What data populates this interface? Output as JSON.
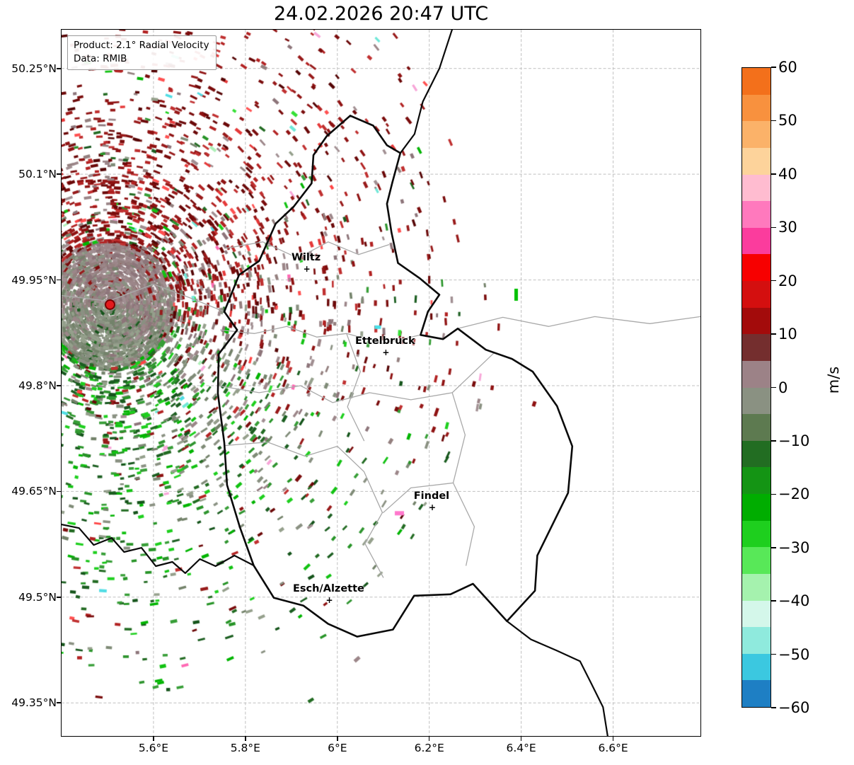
{
  "title": "24.02.2026 20:47 UTC",
  "info_box": {
    "product_line": "Product: 2.1° Radial Velocity",
    "data_line": "Data: RMIB"
  },
  "axes": {
    "lat_tick_labels": [
      "50.25°N",
      "50.1°N",
      "49.95°N",
      "49.8°N",
      "49.65°N",
      "49.5°N",
      "49.35°N"
    ],
    "lat_tick_values": [
      50.25,
      50.1,
      49.95,
      49.8,
      49.65,
      49.5,
      49.35
    ],
    "lon_tick_labels": [
      "5.6°E",
      "5.8°E",
      "6°E",
      "6.2°E",
      "6.4°E",
      "6.6°E"
    ],
    "lon_tick_values": [
      5.6,
      5.8,
      6.0,
      6.2,
      6.4,
      6.6
    ],
    "lon_range": [
      5.4,
      6.79
    ],
    "lat_range": [
      49.303,
      50.305
    ],
    "grid": "dashed"
  },
  "colorbar": {
    "unit_label": "m/s",
    "tick_labels": [
      "60",
      "50",
      "40",
      "30",
      "20",
      "10",
      "0",
      "−10",
      "−20",
      "−30",
      "−40",
      "−50",
      "−60"
    ],
    "tick_values": [
      60,
      50,
      40,
      30,
      20,
      10,
      0,
      -10,
      -20,
      -30,
      -40,
      -50,
      -60
    ],
    "vmin": -60,
    "vmax": 60,
    "band_colors_top_to_bottom": [
      "#f3701b",
      "#f8913e",
      "#fbb269",
      "#fdd39b",
      "#ffbcd0",
      "#ff79bd",
      "#fb3c9d",
      "#f70000",
      "#d40f0f",
      "#a30b0b",
      "#742e2e",
      "#9c8287",
      "#8a9182",
      "#5d7a50",
      "#226d22",
      "#149414",
      "#00ad00",
      "#1ecf1e",
      "#58e858",
      "#a5f2ae",
      "#d4f7ea",
      "#8feadd",
      "#3bc8e0",
      "#1e7fc4"
    ]
  },
  "map": {
    "national_borders": [
      {
        "name": "luxembourg-outline",
        "width": 2.6,
        "points": [
          [
            6.028,
            50.183
          ],
          [
            6.078,
            50.169
          ],
          [
            6.108,
            50.141
          ],
          [
            6.137,
            50.13
          ],
          [
            6.12,
            50.089
          ],
          [
            6.108,
            50.058
          ],
          [
            6.118,
            50.017
          ],
          [
            6.132,
            49.974
          ],
          [
            6.18,
            49.952
          ],
          [
            6.222,
            49.929
          ],
          [
            6.197,
            49.905
          ],
          [
            6.181,
            49.872
          ],
          [
            6.23,
            49.866
          ],
          [
            6.262,
            49.881
          ],
          [
            6.323,
            49.851
          ],
          [
            6.38,
            49.838
          ],
          [
            6.425,
            49.82
          ],
          [
            6.478,
            49.771
          ],
          [
            6.511,
            49.714
          ],
          [
            6.502,
            49.648
          ],
          [
            6.435,
            49.559
          ],
          [
            6.43,
            49.509
          ],
          [
            6.369,
            49.466
          ],
          [
            6.295,
            49.519
          ],
          [
            6.246,
            49.504
          ],
          [
            6.167,
            49.502
          ],
          [
            6.121,
            49.454
          ],
          [
            6.043,
            49.444
          ],
          [
            5.98,
            49.462
          ],
          [
            5.926,
            49.488
          ],
          [
            5.862,
            49.499
          ],
          [
            5.818,
            49.545
          ],
          [
            5.788,
            49.599
          ],
          [
            5.76,
            49.659
          ],
          [
            5.754,
            49.719
          ],
          [
            5.74,
            49.789
          ],
          [
            5.742,
            49.845
          ],
          [
            5.782,
            49.879
          ],
          [
            5.754,
            49.905
          ],
          [
            5.786,
            49.957
          ],
          [
            5.83,
            49.977
          ],
          [
            5.866,
            50.03
          ],
          [
            5.905,
            50.054
          ],
          [
            5.944,
            50.087
          ],
          [
            5.948,
            50.127
          ],
          [
            5.977,
            50.154
          ],
          [
            6.028,
            50.183
          ]
        ]
      },
      {
        "name": "belgium-germany-border",
        "width": 2.2,
        "points": [
          [
            6.137,
            50.13
          ],
          [
            6.168,
            50.157
          ],
          [
            6.186,
            50.203
          ],
          [
            6.222,
            50.25
          ],
          [
            6.252,
            50.31
          ]
        ]
      },
      {
        "name": "france-germany-border",
        "width": 2.2,
        "points": [
          [
            6.369,
            49.466
          ],
          [
            6.421,
            49.44
          ],
          [
            6.478,
            49.424
          ],
          [
            6.528,
            49.409
          ],
          [
            6.552,
            49.378
          ],
          [
            6.578,
            49.344
          ],
          [
            6.59,
            49.295
          ]
        ]
      },
      {
        "name": "belgium-france-border",
        "width": 2.2,
        "points": [
          [
            5.393,
            49.604
          ],
          [
            5.438,
            49.598
          ],
          [
            5.47,
            49.574
          ],
          [
            5.509,
            49.584
          ],
          [
            5.536,
            49.564
          ],
          [
            5.574,
            49.57
          ],
          [
            5.605,
            49.544
          ],
          [
            5.641,
            49.55
          ],
          [
            5.669,
            49.534
          ],
          [
            5.701,
            49.554
          ],
          [
            5.735,
            49.544
          ],
          [
            5.776,
            49.559
          ],
          [
            5.818,
            49.545
          ]
        ]
      }
    ],
    "regional_borders": [
      {
        "name": "canton-line-1",
        "points": [
          [
            5.758,
            49.995
          ],
          [
            5.838,
            50.004
          ],
          [
            5.914,
            49.981
          ],
          [
            5.98,
            50.004
          ],
          [
            6.046,
            49.986
          ],
          [
            6.112,
            50.0
          ]
        ]
      },
      {
        "name": "canton-line-2",
        "points": [
          [
            5.746,
            49.879
          ],
          [
            5.82,
            49.874
          ],
          [
            5.89,
            49.884
          ],
          [
            5.955,
            49.869
          ],
          [
            6.02,
            49.874
          ],
          [
            6.1,
            49.86
          ],
          [
            6.181,
            49.872
          ]
        ]
      },
      {
        "name": "canton-line-3",
        "points": [
          [
            5.741,
            49.8
          ],
          [
            5.83,
            49.79
          ],
          [
            5.92,
            49.8
          ],
          [
            5.99,
            49.776
          ],
          [
            6.07,
            49.79
          ],
          [
            6.16,
            49.78
          ],
          [
            6.25,
            49.79
          ],
          [
            6.34,
            49.846
          ]
        ]
      },
      {
        "name": "canton-line-4",
        "points": [
          [
            6.25,
            49.79
          ],
          [
            6.278,
            49.73
          ],
          [
            6.252,
            49.662
          ],
          [
            6.298,
            49.6
          ],
          [
            6.28,
            49.545
          ]
        ]
      },
      {
        "name": "canton-line-5",
        "points": [
          [
            5.755,
            49.715
          ],
          [
            5.848,
            49.72
          ],
          [
            5.93,
            49.7
          ],
          [
            6.0,
            49.714
          ],
          [
            6.058,
            49.678
          ],
          [
            6.098,
            49.62
          ],
          [
            6.06,
            49.576
          ],
          [
            6.1,
            49.528
          ]
        ]
      },
      {
        "name": "canton-line-6",
        "points": [
          [
            6.02,
            49.874
          ],
          [
            6.05,
            49.82
          ],
          [
            6.022,
            49.77
          ],
          [
            6.058,
            49.722
          ]
        ]
      },
      {
        "name": "canton-line-7",
        "points": [
          [
            6.1,
            49.62
          ],
          [
            6.16,
            49.655
          ],
          [
            6.252,
            49.662
          ]
        ]
      },
      {
        "name": "region-line-west",
        "points": [
          [
            5.4,
            49.928
          ],
          [
            5.502,
            49.92
          ],
          [
            5.6,
            49.944
          ],
          [
            5.682,
            49.924
          ],
          [
            5.754,
            49.905
          ]
        ]
      },
      {
        "name": "region-line-east",
        "points": [
          [
            6.262,
            49.881
          ],
          [
            6.36,
            49.897
          ],
          [
            6.46,
            49.884
          ],
          [
            6.56,
            49.898
          ],
          [
            6.68,
            49.888
          ],
          [
            6.79,
            49.898
          ]
        ]
      }
    ]
  },
  "chart_data": {
    "type": "heatmap",
    "title": "24.02.2026 20:47 UTC",
    "product": "2.1° Radial Velocity",
    "data_source": "RMIB",
    "units": "m/s",
    "value_range": [
      -60,
      60
    ],
    "extent": {
      "lon": [
        5.4,
        6.79
      ],
      "lat": [
        49.303,
        50.305
      ]
    },
    "radar_site": {
      "lon": 5.506,
      "lat": 49.914,
      "marker_color": "#e31a1c"
    },
    "cities": [
      {
        "name": "Wiltz",
        "lon": 5.932,
        "lat": 49.966
      },
      {
        "name": "Ettelbruck",
        "lon": 6.104,
        "lat": 49.847
      },
      {
        "name": "Findel",
        "lon": 6.205,
        "lat": 49.627
      },
      {
        "name": "Esch/Alzette",
        "lon": 5.981,
        "lat": 49.496
      }
    ],
    "pattern": {
      "near_radar": "dense disc of near-zero velocities (±5 m/s, grey-mauve / grey-green), radius ~0.14° around radar site",
      "positive_sector": "speckle of +5 to +25 m/s (dark red) north / north-east of radar, sparse isolated echoes over central Luxembourg",
      "negative_sector": "speckle of -5 to -30 m/s (green) south / south-west of radar, extending to map bottom edge",
      "far_field": "mostly echo-free east of ~6.2°E except isolated bins"
    },
    "notable_echoes": [
      {
        "lon": 6.389,
        "lat": 49.929,
        "value": -20,
        "color": "#00c000",
        "w": 5,
        "h": 17
      },
      {
        "lon": 6.135,
        "lat": 49.619,
        "value": 35,
        "color": "#ff77cc",
        "w": 13,
        "h": 6
      },
      {
        "lon": 6.088,
        "lat": 49.883,
        "value": -45,
        "color": "#49e0e8",
        "w": 9,
        "h": 5
      }
    ],
    "speckle_gen": {
      "seed": 1337,
      "core_count": 3200,
      "core_radius": 92,
      "field_attempts": 9000,
      "field_extent": 470,
      "falloff": 255,
      "sparse_attempts": 420,
      "wind_bearing_deg": 20,
      "palette": {
        "red_dark": [
          "#7a0c0c",
          "#8f1212",
          "#6b0808",
          "#981a1a"
        ],
        "red_mid": [
          "#b22222",
          "#c03030"
        ],
        "red_deep": [
          "#550505"
        ],
        "red_bright": [
          "#e53939",
          "#ff5050"
        ],
        "near_zero_pos": [
          "#9c8689",
          "#94807f",
          "#a18f92",
          "#8d757a"
        ],
        "near_zero_neg": [
          "#8a9182",
          "#7f8b77",
          "#95a08c",
          "#73826a"
        ],
        "green_dark": [
          "#1b5e20",
          "#226b22",
          "#14541a"
        ],
        "green_mid": [
          "#2e942e",
          "#279427",
          "#379e37"
        ],
        "green_bright": [
          "#12c212",
          "#00b400",
          "#1ecf1e"
        ],
        "outliers": [
          "#ff69b4",
          "#52dde4",
          "#35e035",
          "#ff4444",
          "#aef0b8",
          "#f7a6d8",
          "#70e8d8"
        ]
      }
    }
  }
}
